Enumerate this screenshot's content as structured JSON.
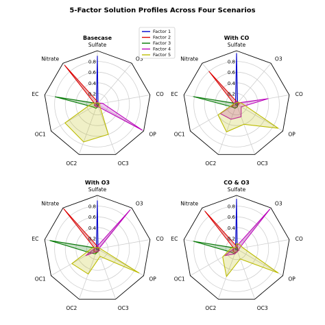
{
  "figure": {
    "title": "5-Factor Solution Profiles Across Four Scenarios"
  },
  "colors": {
    "Factor 1": "#0000cc",
    "Factor 2": "#dd0000",
    "Factor 3": "#007700",
    "Factor 4": "#bb00bb",
    "Factor 5": "#bbbb00"
  },
  "legend": {
    "placement": "upper-center",
    "entries": [
      "Factor 1",
      "Factor 2",
      "Factor 3",
      "Factor 4",
      "Factor 5"
    ]
  },
  "chart_data": [
    {
      "type": "radar",
      "title": "Basecase",
      "categories": [
        "Sulfate",
        "O3",
        "CO",
        "OP",
        "OC3",
        "OC2",
        "OC1",
        "EC",
        "Nitrate"
      ],
      "rticks": [
        "0.2",
        "0.4",
        "0.6",
        "0.8"
      ],
      "rlim": [
        0,
        1.0
      ],
      "grid": true,
      "series": [
        {
          "name": "Factor 1",
          "values": [
            0.9,
            0.02,
            0.02,
            0.02,
            0.02,
            0.02,
            0.02,
            0.02,
            0.03
          ]
        },
        {
          "name": "Factor 2",
          "values": [
            0.05,
            0.02,
            0.02,
            0.03,
            0.03,
            0.05,
            0.06,
            0.05,
            0.95
          ]
        },
        {
          "name": "Factor 3",
          "values": [
            0.02,
            0.02,
            0.02,
            0.02,
            0.05,
            0.08,
            0.1,
            0.8,
            0.02
          ]
        },
        {
          "name": "Factor 4",
          "values": [
            0.05,
            0.03,
            0.1,
            0.97,
            0.05,
            0.05,
            0.05,
            0.05,
            0.03
          ]
        },
        {
          "name": "Factor 5",
          "values": [
            0.03,
            0.03,
            0.05,
            0.05,
            0.6,
            0.75,
            0.7,
            0.1,
            0.03
          ]
        }
      ]
    },
    {
      "type": "radar",
      "title": "With CO",
      "categories": [
        "Sulfate",
        "O3",
        "CO",
        "OP",
        "OC3",
        "OC2",
        "OC1",
        "EC",
        "Nitrate"
      ],
      "rticks": [
        "0.2",
        "0.4",
        "0.6",
        "0.8"
      ],
      "rlim": [
        0,
        1.0
      ],
      "grid": true,
      "series": [
        {
          "name": "Factor 1",
          "values": [
            0.95,
            0.03,
            0.02,
            0.02,
            0.02,
            0.02,
            0.02,
            0.02,
            0.03
          ]
        },
        {
          "name": "Factor 2",
          "values": [
            0.05,
            0.05,
            0.05,
            0.03,
            0.05,
            0.08,
            0.1,
            0.05,
            0.8
          ]
        },
        {
          "name": "Factor 3",
          "values": [
            0.02,
            0.02,
            0.02,
            0.02,
            0.05,
            0.08,
            0.1,
            0.82,
            0.02
          ]
        },
        {
          "name": "Factor 4",
          "values": [
            0.05,
            0.03,
            0.6,
            0.1,
            0.25,
            0.3,
            0.35,
            0.05,
            0.05
          ]
        },
        {
          "name": "Factor 5",
          "values": [
            0.03,
            0.05,
            0.1,
            0.9,
            0.4,
            0.55,
            0.4,
            0.05,
            0.03
          ]
        }
      ]
    },
    {
      "type": "radar",
      "title": "With O3",
      "categories": [
        "Sulfate",
        "O3",
        "CO",
        "OP",
        "OC3",
        "OC2",
        "OC1",
        "EC",
        "Nitrate"
      ],
      "rticks": [
        "0.2",
        "0.4",
        "0.6",
        "0.8"
      ],
      "rlim": [
        0,
        1.0
      ],
      "grid": true,
      "series": [
        {
          "name": "Factor 1",
          "values": [
            0.9,
            0.02,
            0.02,
            0.02,
            0.02,
            0.02,
            0.02,
            0.02,
            0.03
          ]
        },
        {
          "name": "Factor 2",
          "values": [
            0.05,
            0.03,
            0.02,
            0.03,
            0.05,
            0.08,
            0.08,
            0.05,
            0.98
          ]
        },
        {
          "name": "Factor 3",
          "values": [
            0.02,
            0.02,
            0.02,
            0.02,
            0.05,
            0.1,
            0.15,
            0.9,
            0.02
          ]
        },
        {
          "name": "Factor 4",
          "values": [
            0.05,
            0.95,
            0.03,
            0.05,
            0.05,
            0.05,
            0.25,
            0.05,
            0.03
          ]
        },
        {
          "name": "Factor 5",
          "values": [
            0.03,
            0.03,
            0.05,
            0.9,
            0.15,
            0.5,
            0.55,
            0.1,
            0.03
          ]
        }
      ]
    },
    {
      "type": "radar",
      "title": "CO & O3",
      "categories": [
        "Sulfate",
        "O3",
        "CO",
        "OP",
        "OC3",
        "OC2",
        "OC1",
        "EC",
        "Nitrate"
      ],
      "rticks": [
        "0.2",
        "0.4",
        "0.6",
        "0.8"
      ],
      "rlim": [
        0,
        1.0
      ],
      "grid": true,
      "series": [
        {
          "name": "Factor 1",
          "values": [
            0.93,
            0.02,
            0.02,
            0.02,
            0.02,
            0.02,
            0.02,
            0.02,
            0.03
          ]
        },
        {
          "name": "Factor 2",
          "values": [
            0.05,
            0.03,
            0.02,
            0.03,
            0.05,
            0.08,
            0.08,
            0.05,
            0.92
          ]
        },
        {
          "name": "Factor 3",
          "values": [
            0.02,
            0.02,
            0.02,
            0.02,
            0.05,
            0.1,
            0.12,
            0.82,
            0.02
          ]
        },
        {
          "name": "Factor 4",
          "values": [
            0.05,
            0.97,
            0.05,
            0.05,
            0.05,
            0.1,
            0.25,
            0.05,
            0.03
          ]
        },
        {
          "name": "Factor 5",
          "values": [
            0.1,
            0.1,
            0.12,
            0.9,
            0.2,
            0.55,
            0.3,
            0.1,
            0.03
          ]
        }
      ]
    }
  ]
}
